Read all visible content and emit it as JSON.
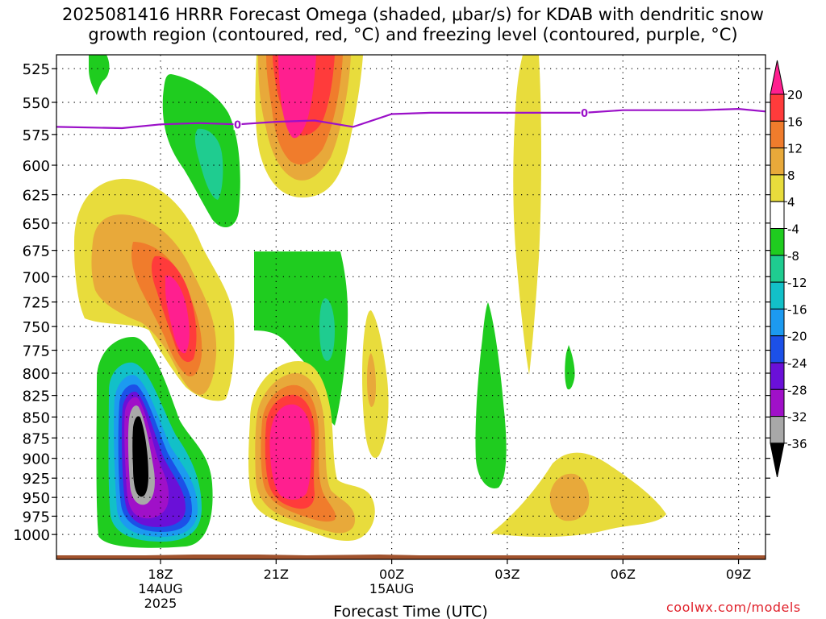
{
  "title": {
    "line1": "2025081416 HRRR Forecast Omega (shaded, μbar/s) for KDAB with dendritic snow",
    "line2": "growth region (contoured, red, °C) and freezing level (contoured, purple, °C)"
  },
  "credit": "coolwx.com/models",
  "chart_data": {
    "type": "contour",
    "title": "2025081416 HRRR Forecast Omega (shaded, μbar/s) for KDAB with dendritic snow growth region (contoured, red, °C) and freezing level (contoured, purple, °C)",
    "xlabel": "Forecast Time (UTC)",
    "ylabel": "",
    "x_range_hours_utc_from_14AUG_00Z": [
      15.3,
      33.7
    ],
    "y_range_hpa": [
      1035,
      515
    ],
    "y_scale": "log",
    "y_ticks": [
      525,
      550,
      575,
      600,
      625,
      650,
      675,
      700,
      725,
      750,
      775,
      800,
      825,
      850,
      875,
      900,
      925,
      950,
      975,
      1000
    ],
    "x_ticks": [
      {
        "hour": 18,
        "label": "18Z",
        "sub1": "14AUG",
        "sub2": "2025"
      },
      {
        "hour": 21,
        "label": "21Z",
        "sub1": "",
        "sub2": ""
      },
      {
        "hour": 24,
        "label": "00Z",
        "sub1": "15AUG",
        "sub2": ""
      },
      {
        "hour": 27,
        "label": "03Z",
        "sub1": "",
        "sub2": ""
      },
      {
        "hour": 30,
        "label": "06Z",
        "sub1": "",
        "sub2": ""
      },
      {
        "hour": 33,
        "label": "09Z",
        "sub1": "",
        "sub2": ""
      }
    ],
    "grid": true,
    "colorbar": {
      "levels": [
        20,
        16,
        12,
        8,
        4,
        -4,
        -8,
        -12,
        -16,
        -20,
        -24,
        -28,
        -32,
        -36
      ],
      "colors": [
        "#ff1f8f",
        "#ff3b3b",
        "#f07c2c",
        "#e8a93a",
        "#e8dc3c",
        "#ffffff",
        "#1fcc1f",
        "#1fcc90",
        "#12c0c8",
        "#1c9af0",
        "#1c50e8",
        "#6a10d8",
        "#a010c8",
        "#a8a8a8",
        "#000000"
      ]
    },
    "freezing_level": {
      "value_label": "0",
      "color": "#9b10c8",
      "points": [
        [
          15.3,
          569
        ],
        [
          17.0,
          570
        ],
        [
          18.0,
          567
        ],
        [
          19.0,
          566
        ],
        [
          20.0,
          567
        ],
        [
          21.0,
          565
        ],
        [
          22.0,
          564
        ],
        [
          23.0,
          569
        ],
        [
          24.0,
          559
        ],
        [
          25.0,
          558
        ],
        [
          26.0,
          558
        ],
        [
          27.0,
          558
        ],
        [
          28.0,
          558
        ],
        [
          29.0,
          558
        ],
        [
          30.0,
          556
        ],
        [
          31.0,
          556
        ],
        [
          32.0,
          556
        ],
        [
          33.0,
          555
        ],
        [
          33.7,
          557
        ]
      ],
      "labels_at_hours": [
        20.0,
        29.0
      ]
    },
    "omega_features": [
      {
        "name": "upward core low-level 18Z",
        "hour_center": 18.0,
        "p_center": 890,
        "min_value": -36
      },
      {
        "name": "downward core mid-level 19Z",
        "hour_center": 19.2,
        "p_center": 725,
        "max_value": 20
      },
      {
        "name": "downward core low-level 22Z",
        "hour_center": 22.0,
        "p_center": 890,
        "max_value": 20
      },
      {
        "name": "downward core upper-level 22Z",
        "hour_center": 22.1,
        "p_center": 545,
        "max_value": 20
      },
      {
        "name": "upward region mid-level 21-23Z",
        "hour_center": 22.0,
        "p_center": 720,
        "min_value": -12
      },
      {
        "name": "upward column 03Z",
        "hour_center": 27.0,
        "p_center": 850,
        "min_value": -8
      },
      {
        "name": "downward area 05Z",
        "hour_center": 29.0,
        "p_center": 950,
        "max_value": 12
      }
    ],
    "surface_color": "#a0522d"
  },
  "colors": {
    "grid": "#000000",
    "freezing_level": "#9b10c8",
    "surface": "#a0522d",
    "credit": "#e0202a"
  }
}
